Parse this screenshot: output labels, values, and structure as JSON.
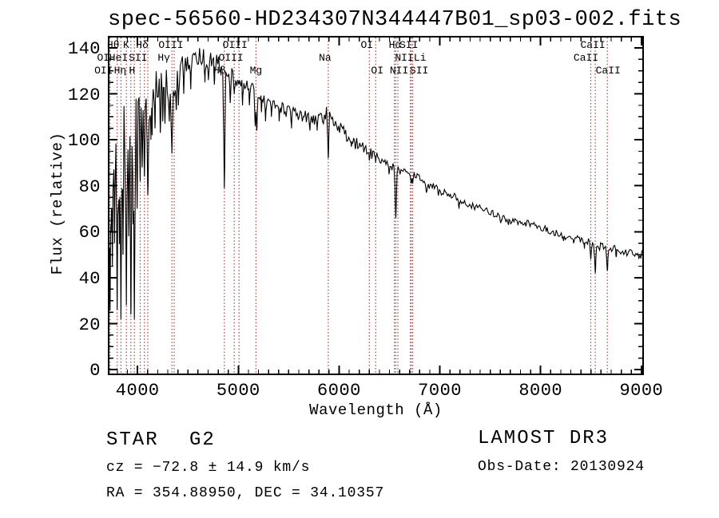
{
  "title": "spec-56560-HD234307N344447B01_sp03-002.fits",
  "annotations": {
    "object_class": "STAR",
    "object_subclass": "G2",
    "cz_line": "cz = −72.8 ± 14.9 km/s",
    "radec_line": "RA = 354.88950, DEC =  34.10357",
    "survey": "LAMOST DR3",
    "obs_date": "Obs-Date: 20130924"
  },
  "colors": {
    "spectrum": "#000000",
    "marker_line": "#a04040",
    "frame": "#000000",
    "background": "#ffffff",
    "text": "#000000"
  },
  "chart_data": {
    "type": "line",
    "title": "spec-56560-HD234307N344447B01_sp03-002.fits",
    "xlabel": "Wavelength (Å)",
    "ylabel": "Flux (relative)",
    "xlim": [
      3705,
      9025
    ],
    "ylim": [
      -2.4,
      145.2
    ],
    "x_ticks": [
      4000,
      5000,
      6000,
      7000,
      8000,
      9000
    ],
    "x_minor_step": 100,
    "y_ticks": [
      0,
      20,
      40,
      60,
      80,
      100,
      120,
      140
    ],
    "y_minor_step": 5,
    "grid": false,
    "legend": "none",
    "marker_wavelengths": [
      3727,
      3798,
      3835,
      3889,
      3933.7,
      3968.5,
      4026,
      4068,
      4101.7,
      4340.5,
      4363,
      4861.3,
      4958.9,
      5006.8,
      5175,
      5892.5,
      6300,
      6363,
      6548,
      6562.8,
      6583.4,
      6707.8,
      6716.4,
      6730.8,
      8498,
      8542,
      8662
    ],
    "spectral_labels": [
      {
        "text": "Hθ",
        "wavelength": 3798,
        "row": 1,
        "dx": -5
      },
      {
        "text": "K",
        "wavelength": 3933.7,
        "row": 1,
        "dx": -6
      },
      {
        "text": "Hδ",
        "wavelength": 4101.7,
        "row": 1,
        "dx": -7
      },
      {
        "text": "OIII",
        "wavelength": 4363,
        "row": 1,
        "dx": -4
      },
      {
        "text": "OIII",
        "wavelength": 5006.8,
        "row": 1,
        "dx": -5
      },
      {
        "text": "OI",
        "wavelength": 6300,
        "row": 1,
        "dx": -3
      },
      {
        "text": "Hα",
        "wavelength": 6562.8,
        "row": 1,
        "dx": -1
      },
      {
        "text": "SII",
        "wavelength": 6716.4,
        "row": 1,
        "dx": -3
      },
      {
        "text": "CaII",
        "wavelength": 8542,
        "row": 1,
        "dx": -3
      },
      {
        "text": "OI",
        "wavelength": 3715,
        "row": 2,
        "dx": -7
      },
      {
        "text": "HeI",
        "wavelength": 4026,
        "row": 2,
        "dx": -27
      },
      {
        "text": "SII",
        "wavelength": 4068,
        "row": 2,
        "dx": -8
      },
      {
        "text": "Hγ",
        "wavelength": 4340.5,
        "row": 2,
        "dx": -10
      },
      {
        "text": "OIII",
        "wavelength": 4958.9,
        "row": 2,
        "dx": -4
      },
      {
        "text": "Na",
        "wavelength": 5892.5,
        "row": 2,
        "dx": -4
      },
      {
        "text": "NII",
        "wavelength": 6583.4,
        "row": 2,
        "dx": 8
      },
      {
        "text": "Li",
        "wavelength": 6707.8,
        "row": 2,
        "dx": 12
      },
      {
        "text": "CaII",
        "wavelength": 8498,
        "row": 2,
        "dx": -6
      },
      {
        "text": "OII",
        "wavelength": 3727,
        "row": 3,
        "dx": -8
      },
      {
        "text": "Hη",
        "wavelength": 3835,
        "row": 3,
        "dx": -1
      },
      {
        "text": "H",
        "wavelength": 3968.5,
        "row": 3,
        "dx": -3
      },
      {
        "text": "Hβ",
        "wavelength": 4861.3,
        "row": 3,
        "dx": -6
      },
      {
        "text": "Mg",
        "wavelength": 5175,
        "row": 3,
        "dx": 0
      },
      {
        "text": "OI",
        "wavelength": 6363,
        "row": 3,
        "dx": 2
      },
      {
        "text": "NII",
        "wavelength": 6548,
        "row": 3,
        "dx": 6
      },
      {
        "text": "SII",
        "wavelength": 6730.8,
        "row": 3,
        "dx": 8
      },
      {
        "text": "CaII",
        "wavelength": 8662,
        "row": 3,
        "dx": 1
      }
    ],
    "continuum": [
      [
        3700,
        100
      ],
      [
        3715,
        95
      ],
      [
        3730,
        96
      ],
      [
        3745,
        97
      ],
      [
        3760,
        99
      ],
      [
        3775,
        99
      ],
      [
        3790,
        101
      ],
      [
        3805,
        102
      ],
      [
        3820,
        104
      ],
      [
        3835,
        103
      ],
      [
        3850,
        106
      ],
      [
        3865,
        107
      ],
      [
        3880,
        108
      ],
      [
        3895,
        110
      ],
      [
        3910,
        110
      ],
      [
        3925,
        111
      ],
      [
        3940,
        111
      ],
      [
        3955,
        110
      ],
      [
        3970,
        111
      ],
      [
        3985,
        113
      ],
      [
        4000,
        115
      ],
      [
        4020,
        117
      ],
      [
        4040,
        119
      ],
      [
        4060,
        120
      ],
      [
        4080,
        119
      ],
      [
        4100,
        118
      ],
      [
        4120,
        121
      ],
      [
        4140,
        124
      ],
      [
        4160,
        125
      ],
      [
        4180,
        126
      ],
      [
        4200,
        126
      ],
      [
        4220,
        126
      ],
      [
        4240,
        127
      ],
      [
        4260,
        127
      ],
      [
        4280,
        126
      ],
      [
        4300,
        126
      ],
      [
        4320,
        124
      ],
      [
        4340,
        123
      ],
      [
        4360,
        126
      ],
      [
        4380,
        129
      ],
      [
        4400,
        131
      ],
      [
        4430,
        132
      ],
      [
        4460,
        133
      ],
      [
        4490,
        134
      ],
      [
        4520,
        135
      ],
      [
        4560,
        136
      ],
      [
        4600,
        137
      ],
      [
        4640,
        137
      ],
      [
        4680,
        136
      ],
      [
        4720,
        136
      ],
      [
        4760,
        135
      ],
      [
        4800,
        134
      ],
      [
        4840,
        132
      ],
      [
        4880,
        130
      ],
      [
        4920,
        129
      ],
      [
        4960,
        128
      ],
      [
        5000,
        127
      ],
      [
        5040,
        126
      ],
      [
        5080,
        125
      ],
      [
        5120,
        124
      ],
      [
        5160,
        122
      ],
      [
        5200,
        121
      ],
      [
        5240,
        120
      ],
      [
        5280,
        119
      ],
      [
        5320,
        118
      ],
      [
        5360,
        117
      ],
      [
        5400,
        116
      ],
      [
        5440,
        114
      ],
      [
        5480,
        113
      ],
      [
        5520,
        113
      ],
      [
        5560,
        112
      ],
      [
        5600,
        112
      ],
      [
        5640,
        111
      ],
      [
        5680,
        110
      ],
      [
        5720,
        110
      ],
      [
        5760,
        109
      ],
      [
        5800,
        109
      ],
      [
        5840,
        110
      ],
      [
        5870,
        112
      ],
      [
        5890,
        114
      ],
      [
        5910,
        112
      ],
      [
        5930,
        111
      ],
      [
        5950,
        110
      ],
      [
        5975,
        108
      ],
      [
        6000,
        106
      ],
      [
        6030,
        105
      ],
      [
        6060,
        103
      ],
      [
        6090,
        102
      ],
      [
        6120,
        101
      ],
      [
        6150,
        100
      ],
      [
        6180,
        99
      ],
      [
        6210,
        98
      ],
      [
        6240,
        97
      ],
      [
        6270,
        96
      ],
      [
        6300,
        95
      ],
      [
        6330,
        94
      ],
      [
        6360,
        94
      ],
      [
        6390,
        93
      ],
      [
        6420,
        92
      ],
      [
        6450,
        91
      ],
      [
        6480,
        90
      ],
      [
        6510,
        89
      ],
      [
        6540,
        88
      ],
      [
        6570,
        88
      ],
      [
        6600,
        87
      ],
      [
        6640,
        86
      ],
      [
        6680,
        85
      ],
      [
        6720,
        85
      ],
      [
        6760,
        84
      ],
      [
        6800,
        83
      ],
      [
        6840,
        82
      ],
      [
        6880,
        81
      ],
      [
        6920,
        80
      ],
      [
        6960,
        79
      ],
      [
        7000,
        78
      ],
      [
        7060,
        77
      ],
      [
        7120,
        76
      ],
      [
        7180,
        75
      ],
      [
        7240,
        73
      ],
      [
        7300,
        72
      ],
      [
        7360,
        71
      ],
      [
        7420,
        70
      ],
      [
        7480,
        69
      ],
      [
        7540,
        68
      ],
      [
        7600,
        67
      ],
      [
        7660,
        66
      ],
      [
        7720,
        65
      ],
      [
        7780,
        65
      ],
      [
        7840,
        64
      ],
      [
        7900,
        64
      ],
      [
        7960,
        63
      ],
      [
        8020,
        62
      ],
      [
        8080,
        61
      ],
      [
        8140,
        60
      ],
      [
        8200,
        59
      ],
      [
        8260,
        58
      ],
      [
        8320,
        58
      ],
      [
        8380,
        57
      ],
      [
        8440,
        56
      ],
      [
        8500,
        56
      ],
      [
        8560,
        55
      ],
      [
        8620,
        54
      ],
      [
        8680,
        53
      ],
      [
        8740,
        53
      ],
      [
        8800,
        52
      ],
      [
        8860,
        51
      ],
      [
        8920,
        51
      ],
      [
        8980,
        50
      ],
      [
        9020,
        51
      ],
      [
        9060,
        54
      ],
      [
        9100,
        56
      ]
    ],
    "absorption_lines": [
      [
        3712,
        4,
        6
      ],
      [
        3727,
        25,
        6
      ],
      [
        3737,
        60,
        5
      ],
      [
        3750,
        45,
        6
      ],
      [
        3771,
        55,
        5
      ],
      [
        3798,
        26,
        7
      ],
      [
        3820,
        55,
        5
      ],
      [
        3835,
        22,
        7
      ],
      [
        3856,
        50,
        5
      ],
      [
        3889,
        28,
        7
      ],
      [
        3912,
        58,
        5
      ],
      [
        3933.7,
        24,
        7
      ],
      [
        3956,
        65,
        5
      ],
      [
        3968.5,
        22,
        7
      ],
      [
        3996,
        70,
        6
      ],
      [
        4026,
        82,
        6
      ],
      [
        4046,
        88,
        5
      ],
      [
        4068,
        84,
        6
      ],
      [
        4101.7,
        76,
        8
      ],
      [
        4132,
        100,
        5
      ],
      [
        4144,
        102,
        5
      ],
      [
        4173,
        105,
        5
      ],
      [
        4226,
        103,
        6
      ],
      [
        4250,
        108,
        5
      ],
      [
        4272,
        107,
        5
      ],
      [
        4315,
        108,
        5
      ],
      [
        4340.5,
        94,
        8
      ],
      [
        4384,
        113,
        6
      ],
      [
        4405,
        115,
        5
      ],
      [
        4458,
        120,
        5
      ],
      [
        4528,
        122,
        5
      ],
      [
        4668,
        125,
        5
      ],
      [
        4703,
        126,
        5
      ],
      [
        4762,
        124,
        5
      ],
      [
        4861.3,
        79,
        8
      ],
      [
        4920,
        116,
        5
      ],
      [
        4958.9,
        120,
        4
      ],
      [
        5042,
        115,
        4
      ],
      [
        5110,
        115,
        4
      ],
      [
        5168,
        106,
        7
      ],
      [
        5183,
        104,
        7
      ],
      [
        5230,
        112,
        4
      ],
      [
        5270,
        108,
        6
      ],
      [
        5328,
        110,
        4
      ],
      [
        5406,
        108,
        4
      ],
      [
        5528,
        105,
        4
      ],
      [
        5711,
        104,
        4
      ],
      [
        5782,
        104,
        4
      ],
      [
        5892.5,
        92,
        8
      ],
      [
        6122,
        97,
        4
      ],
      [
        6162,
        96,
        4
      ],
      [
        6300,
        91,
        5
      ],
      [
        6363,
        90,
        4
      ],
      [
        6495,
        85,
        5
      ],
      [
        6562.8,
        66,
        8
      ],
      [
        6717,
        81,
        6
      ],
      [
        6730.8,
        81,
        5
      ],
      [
        6867,
        77,
        8
      ],
      [
        7190,
        70,
        6
      ],
      [
        7605,
        64,
        9
      ],
      [
        7680,
        63,
        5
      ],
      [
        8227,
        56,
        5
      ],
      [
        8327,
        55,
        4
      ],
      [
        8434,
        53,
        5
      ],
      [
        8498,
        48,
        7
      ],
      [
        8542,
        42,
        8
      ],
      [
        8585,
        52,
        4
      ],
      [
        8662,
        43,
        8
      ],
      [
        8750,
        49,
        5
      ]
    ],
    "noise_profile": [
      [
        3950,
        15
      ],
      [
        4150,
        10
      ],
      [
        4450,
        7
      ],
      [
        5000,
        4
      ],
      [
        5800,
        2.8
      ],
      [
        6100,
        3.2
      ],
      [
        7000,
        2.2
      ],
      [
        9100,
        1.6
      ]
    ]
  }
}
